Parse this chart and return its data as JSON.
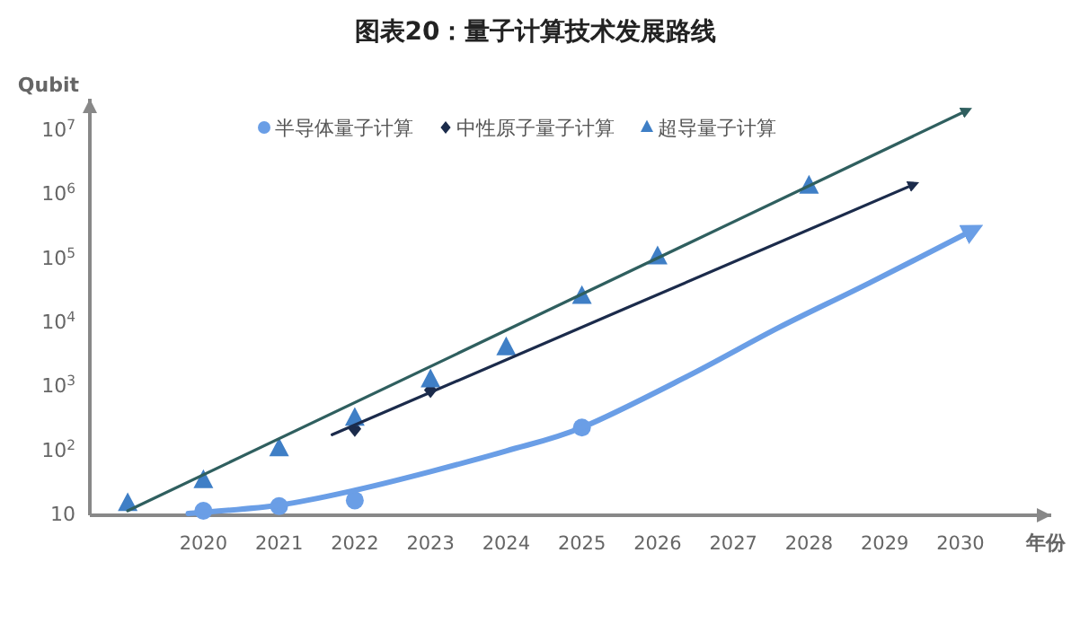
{
  "chart_data": {
    "type": "scatter",
    "title": "图表20：量子计算技术发展路线",
    "xlabel": "年份",
    "ylabel": "Qubit",
    "log": "y",
    "grid": false,
    "legend": "top",
    "xlim": [
      2018.5,
      2031.2
    ],
    "xticks": [
      2020,
      2021,
      2022,
      2023,
      2024,
      2025,
      2026,
      2027,
      2028,
      2029,
      2030
    ],
    "ylim": [
      10,
      30000000
    ],
    "yticks": [
      {
        "value": 10,
        "label": "10"
      },
      {
        "value": 100,
        "label": "10$^{2}$"
      },
      {
        "value": 1000,
        "label": "10$^{3}$"
      },
      {
        "value": 10000,
        "label": "10$^{4}$"
      },
      {
        "value": 100000,
        "label": "10$^{5}$"
      },
      {
        "value": 1000000,
        "label": "10$^{6}$"
      },
      {
        "value": 10000000,
        "label": "10$^{7}$"
      }
    ],
    "series": [
      {
        "name": "半导体量子计算",
        "type": "scatter",
        "marker": "circle",
        "color": "#6a9ee6",
        "x": [
          2020,
          2021,
          2022,
          2025
        ],
        "values": [
          11,
          13,
          16,
          220
        ]
      },
      {
        "name": "中性原子量子计算",
        "type": "scatter",
        "marker": "diamond",
        "color": "#1b2b4b",
        "x": [
          2022,
          2023
        ],
        "values": [
          210,
          850
        ]
      },
      {
        "name": "超导量子计算",
        "type": "scatter",
        "marker": "triangle",
        "color": "#3f7fc6",
        "x": [
          2019,
          2020,
          2021,
          2022,
          2023,
          2024,
          2025,
          2026,
          2028
        ],
        "values": [
          14,
          32,
          100,
          300,
          1200,
          3800,
          24000,
          100000,
          1270000
        ]
      },
      {
        "type": "line",
        "marker": "none",
        "line_style": "solid",
        "color": "#6a9ee6",
        "x": [
          2019.8,
          2021,
          2022,
          2023,
          2024,
          2025,
          2026.4,
          2027.6,
          2028.8,
          2030.2
        ],
        "values": [
          10,
          13.5,
          23,
          45,
          95,
          220,
          1400,
          8000,
          40000,
          280000
        ]
      },
      {
        "type": "line",
        "marker": "none",
        "line_style": "solid",
        "color": "#1b2b4b",
        "x": [
          2021.7,
          2029.4
        ],
        "values": [
          170,
          1400000
        ]
      },
      {
        "type": "line",
        "marker": "none",
        "line_style": "solid",
        "color": "#2f5f5f",
        "x": [
          2019,
          2030.1
        ],
        "values": [
          11,
          20000000
        ]
      }
    ]
  }
}
